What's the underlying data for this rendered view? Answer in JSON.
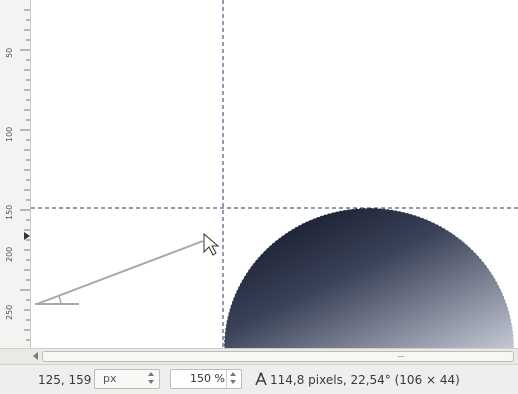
{
  "rulers": {
    "left_labels": [
      "50",
      "100",
      "150",
      "200",
      "250"
    ]
  },
  "status": {
    "pointer_coords": "125, 159",
    "unit": "px",
    "zoom": "150 %",
    "measure_icon": "compass-measure-icon",
    "measurement": "114,8 pixels, 22,54° (106 × 44)"
  },
  "colors": {
    "guide": "#1f3b66",
    "gradient_dark": "#0b1020",
    "gradient_light": "#c4c8d4",
    "measure_line": "#a8a8a2"
  }
}
